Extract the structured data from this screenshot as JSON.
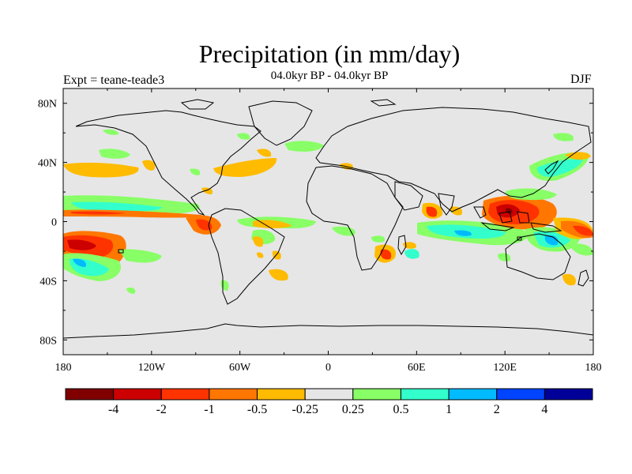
{
  "figure": {
    "title": "Precipitation (in mm/day)",
    "subtitle_left": "Expt = teane-teade3",
    "subtitle_center": "04.0kyr BP - 04.0kyr BP",
    "season": "DJF"
  },
  "chart_data": {
    "type": "heatmap",
    "title": "Precipitation (in mm/day)",
    "projection": "cylindrical equidistant",
    "lon_range": [
      -180,
      180
    ],
    "lat_range": [
      -90,
      90
    ],
    "lon_ticks": [
      "180",
      "120W",
      "60W",
      "0",
      "60E",
      "120E",
      "180"
    ],
    "lat_ticks": [
      "80N",
      "40N",
      "0",
      "40S",
      "80S"
    ],
    "colorbar": {
      "levels": [
        "-4",
        "-2",
        "-1",
        "-0.5",
        "-0.25",
        "0.25",
        "0.5",
        "1",
        "2",
        "4"
      ],
      "colors": [
        "#800000",
        "#cc0000",
        "#ff3300",
        "#ff7700",
        "#ffbb00",
        "#e6e6e6",
        "#88ff66",
        "#33ffcc",
        "#00bbff",
        "#0044ff",
        "#000099"
      ]
    },
    "anomaly_regions": [
      {
        "lon": -163,
        "lat": -14,
        "value": -3.0
      },
      {
        "lon": -165,
        "lat": -25,
        "value": 1.5
      },
      {
        "lon": -130,
        "lat": -32,
        "value": 0.8
      },
      {
        "lon": -145,
        "lat": 10,
        "value": 0.6
      },
      {
        "lon": -140,
        "lat": 40,
        "value": -0.3
      },
      {
        "lon": -65,
        "lat": 30,
        "value": -0.3
      },
      {
        "lon": -82,
        "lat": -2,
        "value": -1.0
      },
      {
        "lon": -47,
        "lat": -10,
        "value": 0.6
      },
      {
        "lon": -42,
        "lat": -40,
        "value": -0.3
      },
      {
        "lon": 30,
        "lat": 30,
        "value": 0.5
      },
      {
        "lon": 42,
        "lat": -22,
        "value": -0.8
      },
      {
        "lon": 70,
        "lat": 5,
        "value": -1.5
      },
      {
        "lon": 80,
        "lat": -5,
        "value": 0.6
      },
      {
        "lon": 120,
        "lat": 10,
        "value": -2.0
      },
      {
        "lon": 128,
        "lat": 10,
        "value": -4.0
      },
      {
        "lon": 150,
        "lat": 40,
        "value": 0.8
      },
      {
        "lon": 150,
        "lat": -10,
        "value": 1.5
      },
      {
        "lon": 170,
        "lat": -10,
        "value": -1.0
      },
      {
        "lon": 170,
        "lat": -40,
        "value": -0.3
      }
    ]
  }
}
